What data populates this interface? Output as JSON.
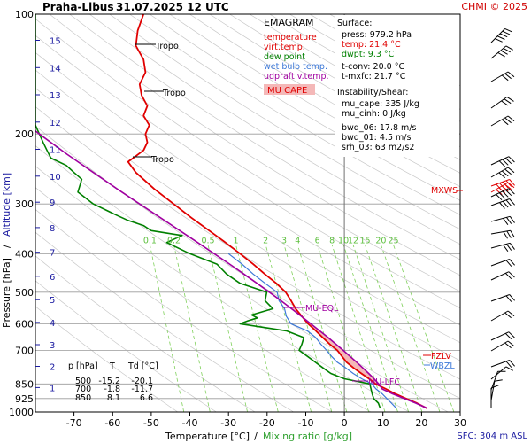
{
  "header": {
    "station": "Praha-Libus",
    "datetime": "31.07.2025 12 UTC",
    "credit": "CHMI © 2025"
  },
  "legend": {
    "title": "EMAGRAM",
    "items": [
      {
        "label": "temperature",
        "color": "#e00000"
      },
      {
        "label": "virt.temp.",
        "color": "#e00000"
      },
      {
        "label": "dew point",
        "color": "#008000"
      },
      {
        "label": "wet bulb temp.",
        "color": "#3c78d8"
      },
      {
        "label": "udpraft v.temp.",
        "color": "#a000a0"
      }
    ],
    "mu_cape_label": "MU CAPE",
    "mu_cape_fill": "#f4b8b8"
  },
  "surface_box": {
    "title": "Surface:",
    "press": "press: 979.2 hPa",
    "temp": "temp: 21.4 °C",
    "dwpt": "dwpt: 9.3 °C",
    "tconv": "t-conv: 20.0 °C",
    "tmxfc": "t-mxfc: 21.7 °C",
    "instab_title": "Instability/Shear:",
    "mu_cape": "mu_cape: 335 J/kg",
    "mu_cinh": "mu_cinh: 0 J/kg",
    "bwd06": "bwd_06: 17.8 m/s",
    "bwd01": "bwd_01: 4.5 m/s",
    "srh03": "srh_03: 63 m2/s2"
  },
  "table": {
    "headers": [
      "p [hPa]",
      "T",
      "Td [°C]"
    ],
    "rows": [
      [
        "500",
        "-15.2",
        "-20.1"
      ],
      [
        "700",
        "-1.8",
        "-11.7"
      ],
      [
        "850",
        "8.1",
        "6.6"
      ]
    ]
  },
  "axes": {
    "xlabel_temp": "Temperature [°C]",
    "xlabel_sep": "/",
    "xlabel_mix": "Mixing ratio [g/kg]",
    "ylabel_pressure": "Pressure [hPa]",
    "ylabel_sep": "/",
    "ylabel_altitude": "Altitude [km]",
    "sfc_note": "SFC: 304 m ASL"
  },
  "annotations": {
    "tropo": "Tropo",
    "mu_eql": "MU-EQL",
    "mu_lfc": "MU-LFC",
    "fzlv": "FZLV",
    "wbzl": "WBZL",
    "mxws": "MXWS"
  },
  "colors": {
    "temperature": "#e00000",
    "dewpoint": "#008000",
    "wetbulb": "#3c78d8",
    "parcel": "#a000a0",
    "mixing": "#7fd05a",
    "grid": "#9a9a9a",
    "altitude": "#1a1aa0"
  },
  "chart_data": {
    "type": "line",
    "title": "EMAGRAM",
    "xlabel": "Temperature [°C] / Mixing ratio [g/kg]",
    "ylabel": "Pressure [hPa] / Altitude [km]",
    "xlim": [
      -80,
      30
    ],
    "ylim": [
      1000,
      100
    ],
    "y_scale": "log",
    "x_ticks": [
      -70,
      -60,
      -50,
      -40,
      -30,
      -20,
      -10,
      0,
      10,
      20,
      30
    ],
    "y_ticks": [
      100,
      200,
      300,
      400,
      500,
      600,
      700,
      850,
      925,
      1000
    ],
    "altitude_ticks_km": [
      "1",
      "2",
      "3",
      "4",
      "5",
      "6",
      "7",
      "8",
      "9",
      "10",
      "11",
      "12",
      "13",
      "14",
      "15",
      "16"
    ],
    "mixing_ratio_labels": [
      "0.1",
      "0.2",
      "0.5",
      "1",
      "2",
      "3",
      "4",
      "6",
      "8",
      "10",
      "12",
      "15",
      "20",
      "25"
    ],
    "series": [
      {
        "name": "temperature",
        "p": [
          979,
          950,
          925,
          900,
          875,
          850,
          825,
          800,
          775,
          750,
          725,
          700,
          675,
          650,
          625,
          600,
          575,
          550,
          525,
          500,
          475,
          450,
          425,
          400,
          375,
          350,
          325,
          300,
          275,
          250,
          235,
          220,
          210,
          200,
          190,
          180,
          170,
          160,
          150,
          140,
          130,
          120,
          110,
          100
        ],
        "t": [
          21.4,
          18.8,
          16.0,
          13.2,
          10.8,
          8.1,
          6.4,
          4.4,
          2.4,
          0.6,
          -0.6,
          -1.8,
          -3.8,
          -5.6,
          -7.4,
          -9.4,
          -11.0,
          -12.6,
          -13.8,
          -15.2,
          -17.6,
          -20.6,
          -23.6,
          -27.0,
          -30.8,
          -35.0,
          -39.6,
          -44.2,
          -49.2,
          -54.0,
          -56.0,
          -52.0,
          -51.0,
          -51.5,
          -50.5,
          -52.0,
          -51.0,
          -52.5,
          -53.0,
          -51.5,
          -52.0,
          -54.0,
          -53.5,
          -52.0
        ]
      },
      {
        "name": "dew point",
        "p": [
          979,
          950,
          925,
          900,
          875,
          850,
          825,
          800,
          775,
          750,
          725,
          700,
          675,
          650,
          625,
          600,
          590,
          580,
          570,
          550,
          525,
          500,
          475,
          450,
          425,
          400,
          375,
          360,
          350,
          340,
          330,
          320,
          300,
          280,
          260,
          250,
          240,
          230,
          220,
          210,
          200,
          190,
          180,
          170,
          160,
          150,
          140,
          130,
          120,
          110,
          100
        ],
        "t": [
          9.3,
          8.8,
          7.6,
          7.2,
          6.9,
          6.6,
          0.0,
          -3.5,
          -5.5,
          -7.5,
          -9.5,
          -11.7,
          -11.0,
          -10.5,
          -15.0,
          -27.0,
          -25.0,
          -22.5,
          -24.0,
          -18.5,
          -20.5,
          -20.1,
          -27.0,
          -30.5,
          -33.0,
          -40.0,
          -46.0,
          -42.0,
          -50.0,
          -52.0,
          -56.0,
          -59.0,
          -65.0,
          -69.0,
          -68.0,
          -70.0,
          -72.0,
          -76.0,
          -77.0,
          -78.0,
          -79.0,
          -80.0,
          -80.0,
          -80.0,
          -80.0,
          -80.0,
          -80.0,
          -80.0,
          -80.0,
          -80.0,
          -80.0
        ]
      },
      {
        "name": "wet bulb temp.",
        "p": [
          979,
          950,
          925,
          900,
          875,
          850,
          825,
          800,
          775,
          750,
          725,
          700,
          675,
          650,
          625,
          600,
          575,
          550,
          525,
          500,
          475,
          450,
          425,
          400
        ],
        "t": [
          13.5,
          12.2,
          11.0,
          9.8,
          8.2,
          7.1,
          4.5,
          2.3,
          0.4,
          -1.8,
          -3.3,
          -4.6,
          -6.1,
          -7.4,
          -9.6,
          -13.8,
          -15.0,
          -15.5,
          -16.9,
          -17.4,
          -20.5,
          -23.6,
          -26.5,
          -30.0
        ]
      },
      {
        "name": "udpraft v.temp.",
        "p": [
          979,
          950,
          925,
          900,
          875,
          850,
          825,
          800,
          775,
          750,
          725,
          700,
          675,
          650,
          625,
          600,
          575,
          550,
          525,
          500,
          475,
          450,
          425,
          400,
          375,
          350,
          325,
          300,
          275,
          250,
          225,
          200,
          175,
          150,
          130
        ],
        "t": [
          21.5,
          18.5,
          15.5,
          12.5,
          9.8,
          8.9,
          7.7,
          6.3,
          4.8,
          3.2,
          1.5,
          -0.3,
          -2.2,
          -4.2,
          -6.4,
          -8.7,
          -11.1,
          -13.7,
          -16.4,
          -19.4,
          -22.6,
          -26.0,
          -29.7,
          -33.7,
          -38.0,
          -42.6,
          -47.6,
          -53.0,
          -58.8,
          -65.0,
          -71.8,
          -79.0,
          -86.6,
          -94.5,
          -101.0
        ]
      }
    ],
    "wind_barbs": {
      "units": "m/s",
      "source": "barbs on right panel"
    }
  }
}
